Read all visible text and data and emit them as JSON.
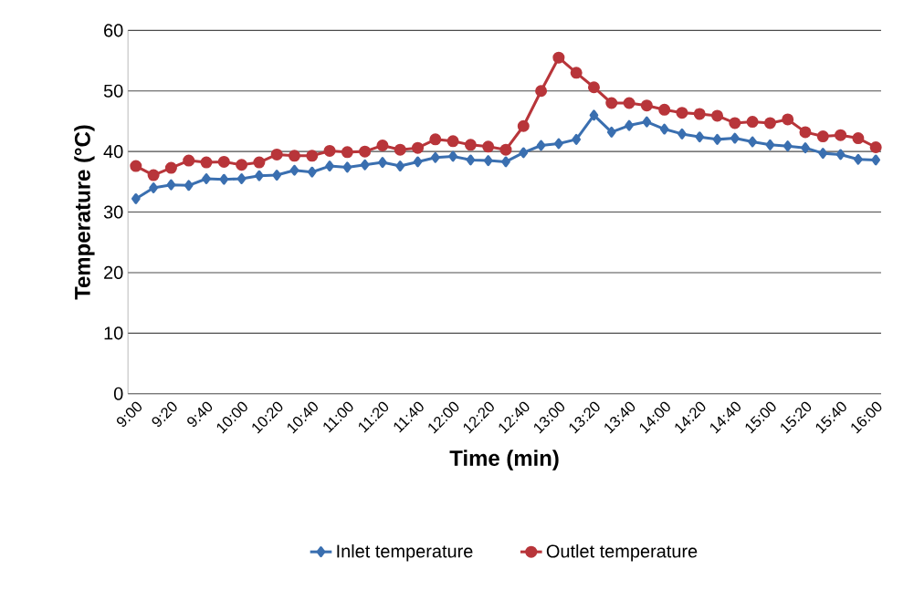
{
  "chart_data": {
    "type": "line",
    "xlabel": "Time (min)",
    "ylabel": "Temperature (°C)",
    "categories": [
      "9:00",
      null,
      "9:20",
      null,
      "9:40",
      null,
      "10:00",
      null,
      "10:20",
      null,
      "10:40",
      null,
      "11:00",
      null,
      "11:20",
      null,
      "11:40",
      null,
      "12:00",
      null,
      "12:20",
      null,
      "12:40",
      null,
      "13:00",
      null,
      "13:20",
      null,
      "13:40",
      null,
      "14:00",
      null,
      "14:20",
      null,
      "14:40",
      null,
      "15:00",
      null,
      "15:20",
      null,
      "15:40",
      null,
      "16:00"
    ],
    "series": [
      {
        "name": "Inlet temperature",
        "color": "#3a6fb0",
        "marker": "diamond",
        "values": [
          32.2,
          34.0,
          34.5,
          34.4,
          35.5,
          35.4,
          35.5,
          36.0,
          36.1,
          36.9,
          36.6,
          37.6,
          37.4,
          37.8,
          38.2,
          37.6,
          38.3,
          39.0,
          39.2,
          38.6,
          38.5,
          38.3,
          39.8,
          41.0,
          41.3,
          42.0,
          46.0,
          43.2,
          44.3,
          44.9,
          43.7,
          42.9,
          42.4,
          42.0,
          42.2,
          41.6,
          41.1,
          40.9,
          40.6,
          39.7,
          39.5,
          38.7,
          38.6
        ]
      },
      {
        "name": "Outlet temperature",
        "color": "#b8353a",
        "marker": "circle",
        "values": [
          37.6,
          36.1,
          37.3,
          38.5,
          38.2,
          38.3,
          37.8,
          38.2,
          39.5,
          39.3,
          39.3,
          40.1,
          39.9,
          40.0,
          41.0,
          40.3,
          40.6,
          42.0,
          41.7,
          41.1,
          40.8,
          40.3,
          44.2,
          50.0,
          55.5,
          53.0,
          50.6,
          48.0,
          48.0,
          47.6,
          46.9,
          46.4,
          46.2,
          45.9,
          44.7,
          44.9,
          44.7,
          45.3,
          43.2,
          42.5,
          42.7,
          42.2,
          40.7
        ]
      }
    ],
    "ylim": [
      0,
      60
    ],
    "yticks": [
      0,
      10,
      20,
      30,
      40,
      50,
      60
    ],
    "grid": "y",
    "legend": "bottom",
    "line_style": "solid"
  }
}
